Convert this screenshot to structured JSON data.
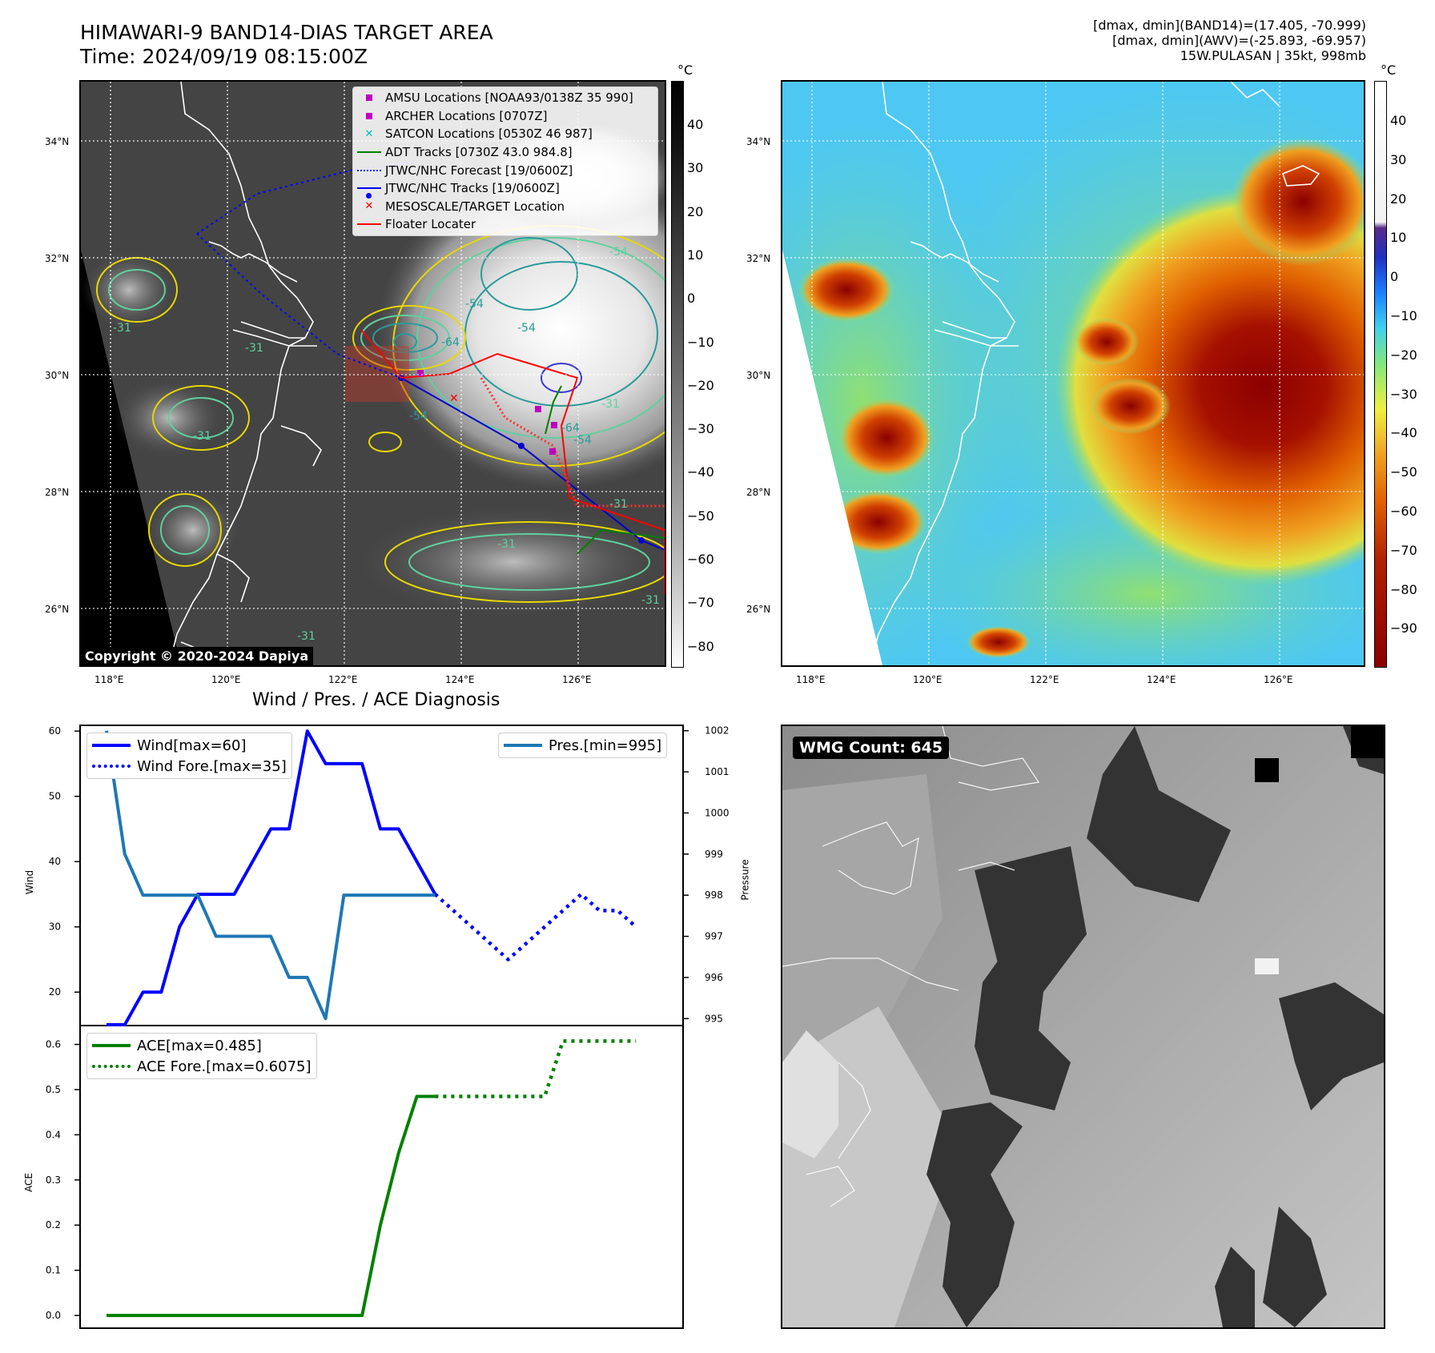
{
  "header": {
    "title_line1": "HIMAWARI-9 BAND14-DIAS TARGET AREA",
    "title_line2": "Time: 2024/09/19 08:15:00Z",
    "right_line1": "[dmax, dmin](BAND14)=(17.405, -70.999)",
    "right_line2": "[dmax, dmin](AWV)=(-25.893, -69.957)",
    "right_line3": "15W.PULASAN | 35kt, 998mb"
  },
  "map": {
    "lat_labels": [
      "34°N",
      "32°N",
      "30°N",
      "28°N",
      "26°N"
    ],
    "lon_labels": [
      "118°E",
      "120°E",
      "122°E",
      "124°E",
      "126°E"
    ],
    "copyright": "Copyright © 2020-2024 Dapiya",
    "contour_labels": [
      "-31",
      "-54",
      "-64",
      "-54",
      "-64",
      "-54",
      "-54",
      "-31",
      "-31",
      "-31",
      "-31",
      "-54",
      "-31",
      "-31",
      "-31"
    ],
    "legend": [
      {
        "label": "AMSU Locations [NOAA93/0138Z 35 990]",
        "marker": "square",
        "color": "#bf00bf"
      },
      {
        "label": "ARCHER Locations [0707Z]",
        "marker": "square",
        "color": "#bf00bf"
      },
      {
        "label": "SATCON Locations [0530Z 46 987]",
        "marker": "x",
        "color": "#00bfbf"
      },
      {
        "label": "ADT Tracks [0730Z 43.0 984.8]",
        "marker": "line",
        "color": "#008000"
      },
      {
        "label": "JTWC/NHC Forecast [19/0600Z]",
        "marker": "dotted",
        "color": "#0000ff"
      },
      {
        "label": "JTWC/NHC Tracks [19/0600Z]",
        "marker": "linedot",
        "color": "#0000ff"
      },
      {
        "label": "MESOSCALE/TARGET Location",
        "marker": "x",
        "color": "#ff0000"
      },
      {
        "label": "Floater Locater",
        "marker": "line",
        "color": "#ff0000"
      }
    ]
  },
  "colorbar_gray": {
    "unit": "°C",
    "ticks": [
      "40",
      "30",
      "20",
      "10",
      "0",
      "−10",
      "−20",
      "−30",
      "−40",
      "−50",
      "−60",
      "−70",
      "−80"
    ]
  },
  "colorbar_awv": {
    "unit": "°C",
    "ticks": [
      "40",
      "30",
      "20",
      "10",
      "0",
      "−10",
      "−20",
      "−30",
      "−40",
      "−50",
      "−60",
      "−70",
      "−80",
      "−90"
    ]
  },
  "wmg": {
    "label": "WMG Count: 645"
  },
  "plot_title": "Wind / Pres. / ACE Diagnosis",
  "chart_data": [
    {
      "type": "line",
      "title": "",
      "ylabel": "Wind",
      "ylim": [
        15,
        61
      ],
      "y_ticks": [
        20,
        30,
        40,
        50,
        60
      ],
      "series": [
        {
          "name": "Wind[max=60]",
          "color": "#0000ff",
          "style": "solid",
          "x": [
            0,
            1,
            2,
            3,
            4,
            5,
            6,
            7,
            8,
            9,
            10,
            11,
            12,
            13,
            14,
            15,
            16,
            17,
            18
          ],
          "values": [
            15,
            15,
            20,
            20,
            30,
            35,
            35,
            35,
            40,
            45,
            45,
            60,
            55,
            55,
            55,
            45,
            45,
            40,
            35
          ]
        },
        {
          "name": "Wind Fore.[max=35]",
          "color": "#0000ff",
          "style": "dotted",
          "x": [
            18,
            19,
            20,
            21,
            22,
            23,
            24,
            25,
            26,
            27,
            28,
            29
          ],
          "values": [
            35,
            32.5,
            30,
            27.5,
            25,
            27.5,
            30,
            32.5,
            35,
            32.5,
            32.5,
            30
          ]
        }
      ]
    },
    {
      "type": "line",
      "title": "",
      "ylabel": "Pressure",
      "ylim": [
        994.85,
        1002.15
      ],
      "y_ticks": [
        995,
        996,
        997,
        998,
        999,
        1000,
        1001,
        1002
      ],
      "series": [
        {
          "name": "Pres.[min=995]",
          "color": "#1f77b4",
          "style": "solid",
          "x": [
            0,
            1,
            2,
            3,
            4,
            5,
            6,
            7,
            8,
            9,
            10,
            11,
            12,
            13,
            14,
            15,
            16,
            17,
            18
          ],
          "values": [
            1002,
            999,
            998,
            998,
            998,
            998,
            997,
            997,
            997,
            997,
            996,
            996,
            995,
            998,
            998,
            998,
            998,
            998,
            998
          ]
        }
      ]
    },
    {
      "type": "line",
      "title": "",
      "ylabel": "ACE",
      "ylim": [
        -0.03,
        0.64
      ],
      "y_ticks": [
        0.0,
        0.1,
        0.2,
        0.3,
        0.4,
        0.5,
        0.6
      ],
      "series": [
        {
          "name": "ACE[max=0.485]",
          "color": "#008000",
          "style": "solid",
          "x": [
            0,
            1,
            2,
            3,
            4,
            5,
            6,
            7,
            8,
            9,
            10,
            11,
            12,
            13,
            14,
            15,
            16,
            17,
            18
          ],
          "values": [
            0,
            0,
            0,
            0,
            0,
            0,
            0,
            0,
            0,
            0,
            0,
            0,
            0,
            0,
            0,
            0.2,
            0.36,
            0.485,
            0.485
          ]
        },
        {
          "name": "ACE Fore.[max=0.6075]",
          "color": "#008000",
          "style": "dotted",
          "x": [
            18,
            19,
            20,
            21,
            22,
            23,
            24,
            25,
            26,
            27,
            28,
            29
          ],
          "values": [
            0.485,
            0.485,
            0.485,
            0.485,
            0.485,
            0.485,
            0.485,
            0.6075,
            0.6075,
            0.6075,
            0.6075,
            0.6075
          ]
        }
      ]
    }
  ]
}
